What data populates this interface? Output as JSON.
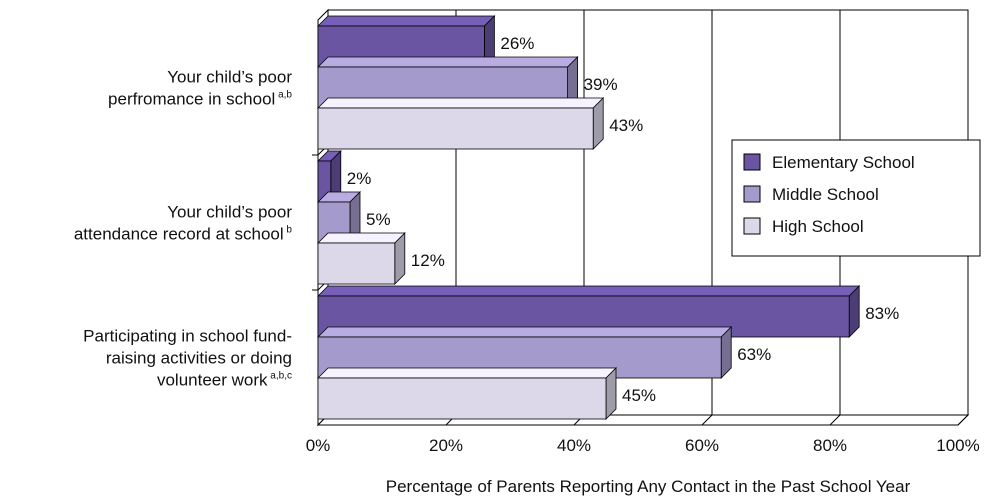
{
  "chart_data": {
    "type": "bar",
    "orientation": "horizontal",
    "categories": [
      {
        "lines": [
          "Your child’s poor",
          "perfromance in school"
        ],
        "superscript": "a,b"
      },
      {
        "lines": [
          "Your child’s poor",
          "attendance record at school"
        ],
        "superscript": "b"
      },
      {
        "lines": [
          "Participating in school fund-",
          "raising activities or doing",
          "volunteer work"
        ],
        "superscript": "a,b,c"
      }
    ],
    "series": [
      {
        "name": "Elementary School",
        "color": "#6a55a3",
        "values": [
          26,
          2,
          83
        ]
      },
      {
        "name": "Middle School",
        "color": "#a49acb",
        "values": [
          39,
          5,
          63
        ]
      },
      {
        "name": "High School",
        "color": "#dcd8ea",
        "values": [
          43,
          12,
          45
        ]
      }
    ],
    "value_suffix": "%",
    "xlim": [
      0,
      100
    ],
    "xticks": [
      0,
      20,
      40,
      60,
      80,
      100
    ],
    "xlabel": "Percentage of Parents Reporting Any Contact in the Past School Year",
    "grid": "vertical",
    "legend_position": "right"
  }
}
